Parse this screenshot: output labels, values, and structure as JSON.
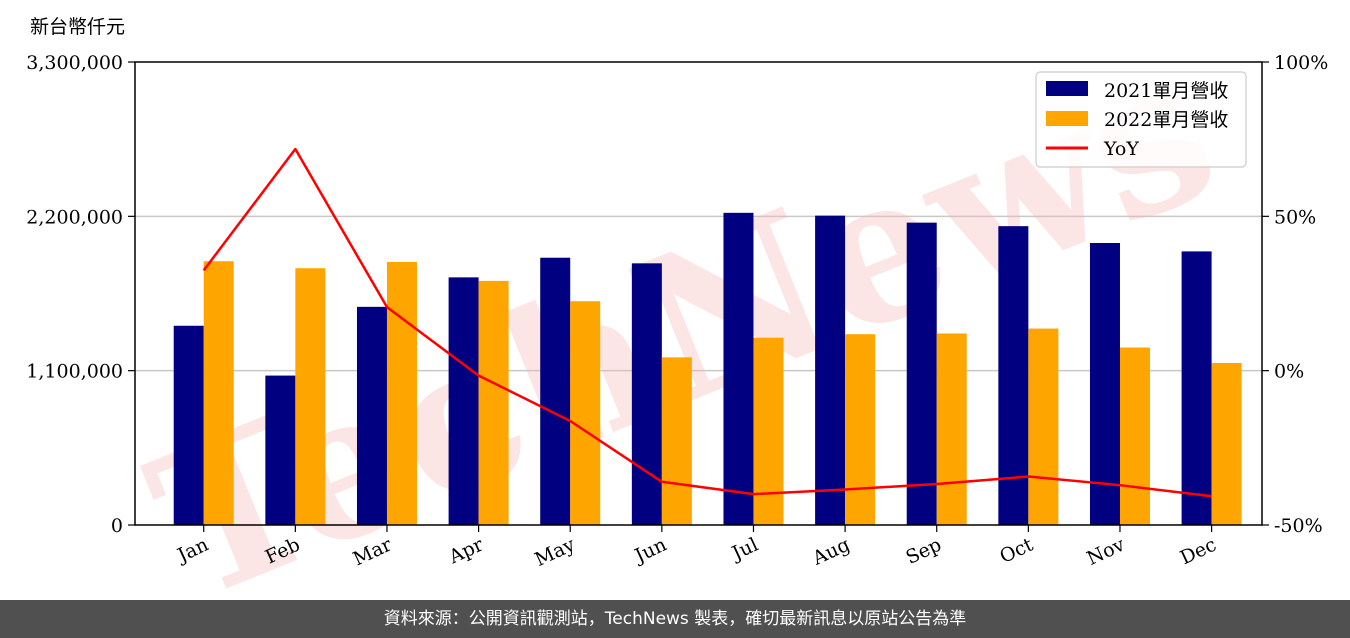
{
  "chart_data": {
    "type": "bar",
    "left_unit_label": "新台幣仟元",
    "categories": [
      "Jan",
      "Feb",
      "Mar",
      "Apr",
      "May",
      "Jun",
      "Jul",
      "Aug",
      "Sep",
      "Oct",
      "Nov",
      "Dec"
    ],
    "series": [
      {
        "name": "2021單月營收",
        "type": "bar",
        "axis": "left",
        "color": "#000080",
        "values": [
          1420000,
          1065000,
          1555000,
          1765000,
          1905000,
          1865000,
          2225000,
          2205000,
          2155000,
          2130000,
          2010000,
          1950000
        ]
      },
      {
        "name": "2022單月營收",
        "type": "bar",
        "axis": "left",
        "color": "#FFA500",
        "values": [
          1880000,
          1830000,
          1875000,
          1740000,
          1595000,
          1195000,
          1335000,
          1360000,
          1365000,
          1400000,
          1265000,
          1155000
        ]
      },
      {
        "name": "YoY",
        "type": "line",
        "axis": "right",
        "color": "#FF0000",
        "values": [
          32.5,
          71.8,
          20.6,
          -1.6,
          -16.3,
          -36.0,
          -40.0,
          -38.5,
          -36.7,
          -34.3,
          -37.1,
          -40.7
        ]
      }
    ],
    "left_axis": {
      "ylim": [
        0,
        3300000
      ],
      "ticks": [
        0,
        1100000,
        2200000,
        3300000
      ],
      "tick_labels": [
        "0",
        "1,100,000",
        "2,200,000",
        "3,300,000"
      ]
    },
    "right_axis": {
      "ylim": [
        -50,
        100
      ],
      "ticks": [
        -50,
        0,
        50,
        100
      ],
      "tick_labels": [
        "-50%",
        "0%",
        "50%",
        "100%"
      ]
    },
    "grid": true,
    "legend_position": "top-right",
    "watermark": "TechNews"
  },
  "footer": {
    "text": "資料來源：公開資訊觀測站，TechNews 製表，確切最新訊息以原站公告為準"
  }
}
